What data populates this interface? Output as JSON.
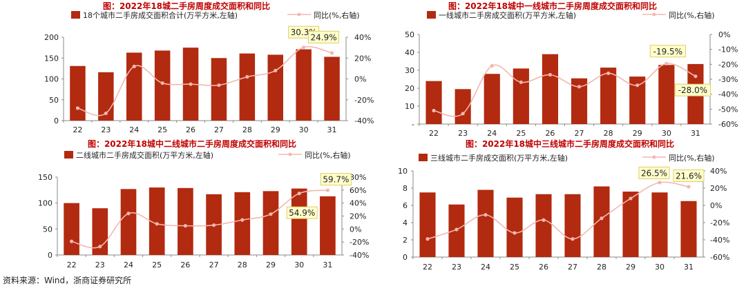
{
  "source": "资料来源：Wind，浙商证券研究所",
  "colors": {
    "bar": "#B22A10",
    "line": "#F2B7AE",
    "callout_bg": "#FFFFCC",
    "callout_border": "#E0CC66",
    "title": "#C00000"
  },
  "chart_data": [
    {
      "type": "bar+line",
      "title": "图：2022年18城二手房周度成交面积和同比",
      "categories": [
        "22",
        "23",
        "24",
        "25",
        "26",
        "27",
        "28",
        "29",
        "30",
        "31"
      ],
      "series": [
        {
          "name": "18个城市二手房成交面积合计(万平方米,左轴)",
          "type": "bar",
          "axis": "left",
          "values": [
            131,
            116,
            163,
            168,
            175,
            150,
            161,
            158,
            171,
            153
          ]
        },
        {
          "name": "同比(%,右轴)",
          "type": "line",
          "axis": "right",
          "values": [
            -28,
            -33,
            12,
            -4,
            -5,
            -6,
            2,
            8,
            30.3,
            24.9
          ]
        }
      ],
      "left_axis": {
        "min": 0,
        "max": 200,
        "ticks": [
          "0",
          "50",
          "100",
          "150",
          "200"
        ]
      },
      "right_axis": {
        "min": -40,
        "max": 40,
        "ticks": [
          "-40%",
          "-20%",
          "0%",
          "20%",
          "40%"
        ]
      },
      "callouts": [
        "30.3%",
        "24.9%"
      ]
    },
    {
      "type": "bar+line",
      "title": "图：2022年18城中一线城市二手房周度成交面积和同比",
      "categories": [
        "22",
        "23",
        "24",
        "25",
        "26",
        "27",
        "28",
        "29",
        "30",
        "31"
      ],
      "series": [
        {
          "name": "一线城市二手房成交面积(万平方米,左轴)",
          "type": "bar",
          "axis": "left",
          "values": [
            24,
            19.5,
            28,
            31,
            39,
            25.5,
            31.5,
            26.5,
            33,
            33.5
          ]
        },
        {
          "name": "同比(%,右轴)",
          "type": "line",
          "axis": "right",
          "values": [
            -51,
            -53,
            -21,
            -32,
            -27,
            -35,
            -26,
            -34,
            -19.5,
            -28.0
          ]
        }
      ],
      "left_axis": {
        "min": 0,
        "max": 50,
        "ticks": [
          "-",
          "10",
          "20",
          "30",
          "40",
          "50"
        ]
      },
      "right_axis": {
        "min": -60,
        "max": 0,
        "ticks": [
          "-60%",
          "-50%",
          "-40%",
          "-30%",
          "-20%",
          "-10%",
          "0%"
        ]
      },
      "callouts": [
        "-19.5%",
        "-28.0%"
      ]
    },
    {
      "type": "bar+line",
      "title": "图：2022年18城中二线城市二手房周度成交面积和同比",
      "categories": [
        "22",
        "23",
        "24",
        "25",
        "26",
        "27",
        "28",
        "29",
        "30",
        "31"
      ],
      "series": [
        {
          "name": "二线城市二手房成交面积(万平方米,左轴)",
          "type": "bar",
          "axis": "left",
          "values": [
            100,
            90,
            127,
            130,
            129,
            117,
            121,
            123,
            128,
            113
          ]
        },
        {
          "name": "同比(%,右轴)",
          "type": "line",
          "axis": "right",
          "values": [
            -19,
            -27,
            24,
            8,
            5,
            6,
            14,
            23,
            54.9,
            59.7
          ]
        }
      ],
      "left_axis": {
        "min": 0,
        "max": 150,
        "ticks": [
          "0",
          "50",
          "100",
          "150"
        ]
      },
      "right_axis": {
        "min": -40,
        "max": 80,
        "ticks": [
          "-40%",
          "-20%",
          "0%",
          "20%",
          "40%",
          "60%",
          "80%"
        ]
      },
      "callouts": [
        "54.9%",
        "59.7%"
      ]
    },
    {
      "type": "bar+line",
      "title": "图：2022年18城中三线城市二手房周度成交面积和同比",
      "categories": [
        "22",
        "23",
        "24",
        "25",
        "26",
        "27",
        "28",
        "29",
        "30",
        "31"
      ],
      "series": [
        {
          "name": "三线城市二手房成交面积(万平方米,左轴)",
          "type": "bar",
          "axis": "left",
          "values": [
            7.5,
            6.1,
            7.8,
            6.9,
            7.3,
            7.3,
            8.2,
            7.6,
            7.5,
            6.5
          ]
        },
        {
          "name": "同比(%,右轴)",
          "type": "line",
          "axis": "right",
          "values": [
            -39,
            -28,
            -11,
            -32,
            -17,
            -39,
            -15,
            8,
            26.5,
            21.6
          ]
        }
      ],
      "left_axis": {
        "min": 0,
        "max": 10,
        "ticks": [
          "0",
          "2",
          "4",
          "6",
          "8",
          "10"
        ]
      },
      "right_axis": {
        "min": -60,
        "max": 40,
        "ticks": [
          "-60%",
          "-40%",
          "-20%",
          "0%",
          "20%",
          "40%"
        ]
      },
      "callouts": [
        "26.5%",
        "21.6%"
      ]
    }
  ]
}
